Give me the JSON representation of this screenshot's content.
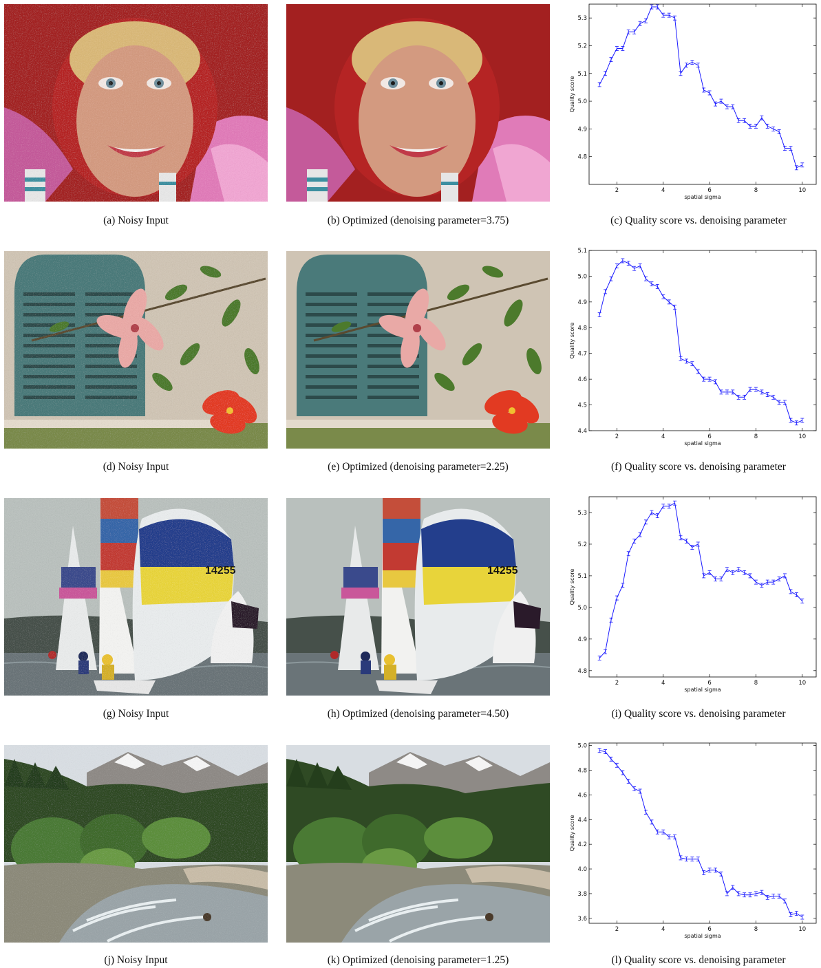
{
  "figure": {
    "rows": [
      {
        "noisy_caption": "(a)  Noisy Input",
        "optimized_caption": "(b)  Optimized (denoising parameter=3.75)",
        "plot_caption": "(c)  Quality score vs. denoising parameter",
        "scene": "portrait"
      },
      {
        "noisy_caption": "(d)  Noisy Input",
        "optimized_caption": "(e)  Optimized (denoising parameter=2.25)",
        "plot_caption": "(f)  Quality score vs. denoising parameter",
        "scene": "window-flower"
      },
      {
        "noisy_caption": "(g)  Noisy Input",
        "optimized_caption": "(h)  Optimized (denoising parameter=4.50)",
        "plot_caption": "(i)  Quality score vs. denoising parameter",
        "scene": "sailboats"
      },
      {
        "noisy_caption": "(j)  Noisy Input",
        "optimized_caption": "(k)  Optimized (denoising parameter=1.25)",
        "plot_caption": "(l)  Quality score vs. denoising parameter",
        "scene": "mountain-river"
      }
    ]
  },
  "chart_data": [
    {
      "type": "line",
      "xlabel": "spatial sigma",
      "ylabel": "Quality score",
      "xlim": [
        0.8,
        10.6
      ],
      "ylim": [
        4.7,
        5.35
      ],
      "xticks": [
        2,
        4,
        6,
        8,
        10
      ],
      "yticks": [
        4.8,
        4.9,
        5.0,
        5.1,
        5.2,
        5.3
      ],
      "yticklabels": [
        "4.8",
        "4.9",
        "5.0",
        "5.1",
        "5.2",
        "5.3"
      ],
      "color": "#1a1aff",
      "x": [
        1.25,
        1.5,
        1.75,
        2,
        2.25,
        2.5,
        2.75,
        3,
        3.25,
        3.5,
        3.75,
        4,
        4.25,
        4.5,
        4.75,
        5,
        5.25,
        5.5,
        5.75,
        6,
        6.25,
        6.5,
        6.75,
        7,
        7.25,
        7.5,
        7.75,
        8,
        8.25,
        8.5,
        8.75,
        9,
        9.25,
        9.5,
        9.75,
        10
      ],
      "y": [
        5.06,
        5.1,
        5.15,
        5.19,
        5.19,
        5.25,
        5.25,
        5.28,
        5.29,
        5.34,
        5.34,
        5.31,
        5.31,
        5.3,
        5.1,
        5.13,
        5.14,
        5.13,
        5.04,
        5.03,
        4.99,
        5.0,
        4.98,
        4.98,
        4.93,
        4.93,
        4.91,
        4.91,
        4.94,
        4.91,
        4.9,
        4.89,
        4.83,
        4.83,
        4.76,
        4.77
      ]
    },
    {
      "type": "line",
      "xlabel": "spatial sigma",
      "ylabel": "Quality score",
      "xlim": [
        0.8,
        10.6
      ],
      "ylim": [
        4.4,
        5.1
      ],
      "xticks": [
        2,
        4,
        6,
        8,
        10
      ],
      "yticks": [
        4.4,
        4.5,
        4.6,
        4.7,
        4.8,
        4.9,
        5.0,
        5.1
      ],
      "yticklabels": [
        "4.4",
        "4.5",
        "4.6",
        "4.7",
        "4.8",
        "4.9",
        "5.0",
        "5.1"
      ],
      "color": "#1a1aff",
      "x": [
        1.25,
        1.5,
        1.75,
        2,
        2.25,
        2.5,
        2.75,
        3,
        3.25,
        3.5,
        3.75,
        4,
        4.25,
        4.5,
        4.75,
        5,
        5.25,
        5.5,
        5.75,
        6,
        6.25,
        6.5,
        6.75,
        7,
        7.25,
        7.5,
        7.75,
        8,
        8.25,
        8.5,
        8.75,
        9,
        9.25,
        9.5,
        9.75,
        10
      ],
      "y": [
        4.85,
        4.94,
        4.99,
        5.04,
        5.06,
        5.05,
        5.03,
        5.04,
        4.99,
        4.97,
        4.96,
        4.92,
        4.9,
        4.88,
        4.68,
        4.67,
        4.66,
        4.63,
        4.6,
        4.6,
        4.59,
        4.55,
        4.55,
        4.55,
        4.53,
        4.53,
        4.56,
        4.56,
        4.55,
        4.54,
        4.53,
        4.51,
        4.51,
        4.44,
        4.43,
        4.44
      ]
    },
    {
      "type": "line",
      "xlabel": "spatial sigma",
      "ylabel": "Quality score",
      "xlim": [
        0.8,
        10.6
      ],
      "ylim": [
        4.78,
        5.35
      ],
      "xticks": [
        2,
        4,
        6,
        8,
        10
      ],
      "yticks": [
        4.8,
        4.9,
        5.0,
        5.1,
        5.2,
        5.3
      ],
      "yticklabels": [
        "4.8",
        "4.9",
        "5.0",
        "5.1",
        "5.2",
        "5.3"
      ],
      "color": "#1a1aff",
      "x": [
        1.25,
        1.5,
        1.75,
        2,
        2.25,
        2.5,
        2.75,
        3,
        3.25,
        3.5,
        3.75,
        4,
        4.25,
        4.5,
        4.75,
        5,
        5.25,
        5.5,
        5.75,
        6,
        6.25,
        6.5,
        6.75,
        7,
        7.25,
        7.5,
        7.75,
        8,
        8.25,
        8.5,
        8.75,
        9,
        9.25,
        9.5,
        9.75,
        10
      ],
      "y": [
        4.84,
        4.86,
        4.96,
        5.03,
        5.07,
        5.17,
        5.21,
        5.23,
        5.27,
        5.3,
        5.29,
        5.32,
        5.32,
        5.33,
        5.22,
        5.21,
        5.19,
        5.2,
        5.1,
        5.11,
        5.09,
        5.09,
        5.12,
        5.11,
        5.12,
        5.11,
        5.1,
        5.08,
        5.07,
        5.08,
        5.08,
        5.09,
        5.1,
        5.05,
        5.04,
        5.02
      ]
    },
    {
      "type": "line",
      "xlabel": "spatial sigma",
      "ylabel": "Quality score",
      "xlim": [
        0.8,
        10.6
      ],
      "ylim": [
        3.56,
        5.02
      ],
      "xticks": [
        2,
        4,
        6,
        8,
        10
      ],
      "yticks": [
        3.6,
        3.8,
        4.0,
        4.2,
        4.4,
        4.6,
        4.8,
        5.0
      ],
      "yticklabels": [
        "3.6",
        "3.8",
        "4.0",
        "4.2",
        "4.4",
        "4.6",
        "4.8",
        "5.0"
      ],
      "color": "#1a1aff",
      "x": [
        1.25,
        1.5,
        1.75,
        2,
        2.25,
        2.5,
        2.75,
        3,
        3.25,
        3.5,
        3.75,
        4,
        4.25,
        4.5,
        4.75,
        5,
        5.25,
        5.5,
        5.75,
        6,
        6.25,
        6.5,
        6.75,
        7,
        7.25,
        7.5,
        7.75,
        8,
        8.25,
        8.5,
        8.75,
        9,
        9.25,
        9.5,
        9.75,
        10
      ],
      "y": [
        4.96,
        4.95,
        4.89,
        4.84,
        4.78,
        4.71,
        4.65,
        4.63,
        4.46,
        4.38,
        4.3,
        4.3,
        4.26,
        4.26,
        4.09,
        4.08,
        4.08,
        4.08,
        3.97,
        3.99,
        3.99,
        3.96,
        3.8,
        3.85,
        3.8,
        3.79,
        3.79,
        3.8,
        3.81,
        3.77,
        3.78,
        3.78,
        3.74,
        3.63,
        3.64,
        3.61
      ]
    }
  ]
}
